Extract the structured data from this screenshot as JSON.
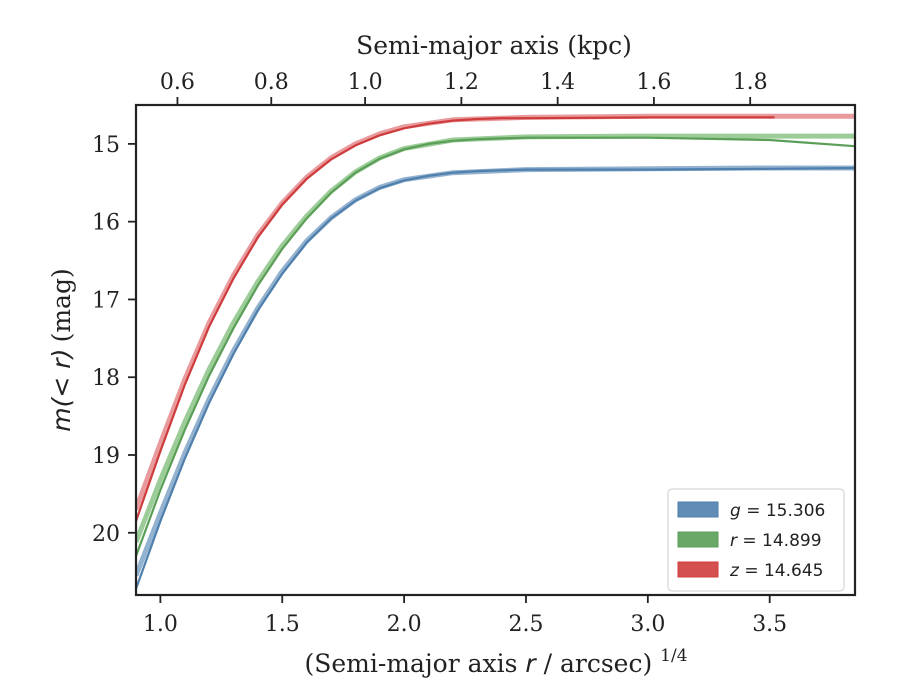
{
  "chart_data": {
    "type": "line",
    "title": "",
    "xlabel": "(Semi-major axis",
    "xlabel_var": "r",
    "xlabel_tail": "/ arcsec)",
    "xlabel_exponent": "1/4",
    "ylabel_prefix": "m(< r)",
    "ylabel_suffix": "(mag)",
    "top_xlabel": "Semi-major axis (kpc)",
    "xlim": [
      0.9,
      3.85
    ],
    "ylim": [
      20.8,
      14.5
    ],
    "y_inverted": true,
    "x_ticks": [
      1.0,
      1.5,
      2.0,
      2.5,
      3.0,
      3.5
    ],
    "x_tick_labels": [
      "1.0",
      "1.5",
      "2.0",
      "2.5",
      "3.0",
      "3.5"
    ],
    "y_ticks": [
      15,
      16,
      17,
      18,
      19,
      20
    ],
    "y_tick_labels": [
      "15",
      "16",
      "17",
      "18",
      "19",
      "20"
    ],
    "top_x_ticks": [
      0.6,
      0.8,
      1.0,
      1.2,
      1.4,
      1.6,
      1.8
    ],
    "top_x_tick_labels": [
      "0.6",
      "0.8",
      "1.0",
      "1.2",
      "1.4",
      "1.6",
      "1.8"
    ],
    "top_x_tick_positions_bottom_units": [
      1.07,
      1.455,
      1.84,
      2.235,
      2.63,
      3.025,
      3.42
    ],
    "legend_position": "lower right",
    "series": [
      {
        "name": "g = 15.306",
        "legend_var": "g",
        "legend_value": "15.306",
        "color": "#4f7fad",
        "x": [
          0.9,
          1.0,
          1.1,
          1.2,
          1.3,
          1.4,
          1.5,
          1.6,
          1.7,
          1.8,
          1.9,
          2.0,
          2.1,
          2.2,
          2.3,
          2.4,
          2.5,
          3.0,
          3.5,
          3.85
        ],
        "y": [
          20.72,
          19.85,
          19.05,
          18.33,
          17.7,
          17.14,
          16.67,
          16.27,
          15.96,
          15.73,
          15.57,
          15.47,
          15.41,
          15.37,
          15.35,
          15.34,
          15.33,
          15.33,
          15.32,
          15.31
        ]
      },
      {
        "name": "r = 14.899",
        "legend_var": "r",
        "legend_value": "14.899",
        "color": "#5a9e57",
        "x": [
          0.9,
          1.0,
          1.1,
          1.2,
          1.3,
          1.4,
          1.5,
          1.6,
          1.7,
          1.8,
          1.9,
          2.0,
          2.1,
          2.2,
          2.3,
          2.4,
          2.5,
          3.0,
          3.5,
          3.85
        ],
        "y": [
          20.3,
          19.45,
          18.68,
          17.98,
          17.37,
          16.82,
          16.35,
          15.96,
          15.63,
          15.37,
          15.19,
          15.07,
          15.0,
          14.96,
          14.94,
          14.93,
          14.92,
          14.92,
          14.95,
          15.03
        ]
      },
      {
        "name": "z = 14.645",
        "legend_var": "z",
        "legend_value": "14.645",
        "color": "#cf3c3d",
        "x": [
          0.9,
          1.0,
          1.1,
          1.2,
          1.3,
          1.4,
          1.5,
          1.6,
          1.7,
          1.8,
          1.9,
          2.0,
          2.1,
          2.2,
          2.3,
          2.4,
          2.5,
          3.0,
          3.5,
          3.52
        ],
        "y": [
          19.85,
          18.95,
          18.1,
          17.35,
          16.73,
          16.2,
          15.78,
          15.45,
          15.2,
          15.02,
          14.89,
          14.8,
          14.74,
          14.7,
          14.68,
          14.67,
          14.67,
          14.66,
          14.66,
          14.66
        ]
      }
    ],
    "model_lines": [
      {
        "color": "#93b2cf",
        "x": [
          0.9,
          1.0,
          1.1,
          1.2,
          1.3,
          1.4,
          1.5,
          1.6,
          1.7,
          1.8,
          1.9,
          2.0,
          2.2,
          2.5,
          3.0,
          3.5,
          3.85
        ],
        "y": [
          20.55,
          19.75,
          18.98,
          18.28,
          17.66,
          17.11,
          16.64,
          16.25,
          15.95,
          15.72,
          15.56,
          15.46,
          15.37,
          15.33,
          15.32,
          15.31,
          15.31
        ]
      },
      {
        "color": "#9ccd98",
        "x": [
          0.9,
          1.0,
          1.1,
          1.2,
          1.3,
          1.4,
          1.5,
          1.6,
          1.7,
          1.8,
          1.9,
          2.0,
          2.2,
          2.5,
          3.0,
          3.5,
          3.85
        ],
        "y": [
          20.12,
          19.32,
          18.58,
          17.9,
          17.3,
          16.77,
          16.31,
          15.93,
          15.61,
          15.36,
          15.18,
          15.06,
          14.95,
          14.91,
          14.9,
          14.9,
          14.9
        ]
      },
      {
        "color": "#e99a9c",
        "x": [
          0.9,
          1.0,
          1.1,
          1.2,
          1.3,
          1.4,
          1.5,
          1.6,
          1.7,
          1.8,
          1.9,
          2.0,
          2.2,
          2.5,
          3.0,
          3.5,
          3.85
        ],
        "y": [
          19.7,
          18.85,
          18.03,
          17.3,
          16.69,
          16.17,
          15.76,
          15.43,
          15.18,
          15.0,
          14.87,
          14.78,
          14.69,
          14.66,
          14.645,
          14.645,
          14.645
        ]
      }
    ]
  }
}
